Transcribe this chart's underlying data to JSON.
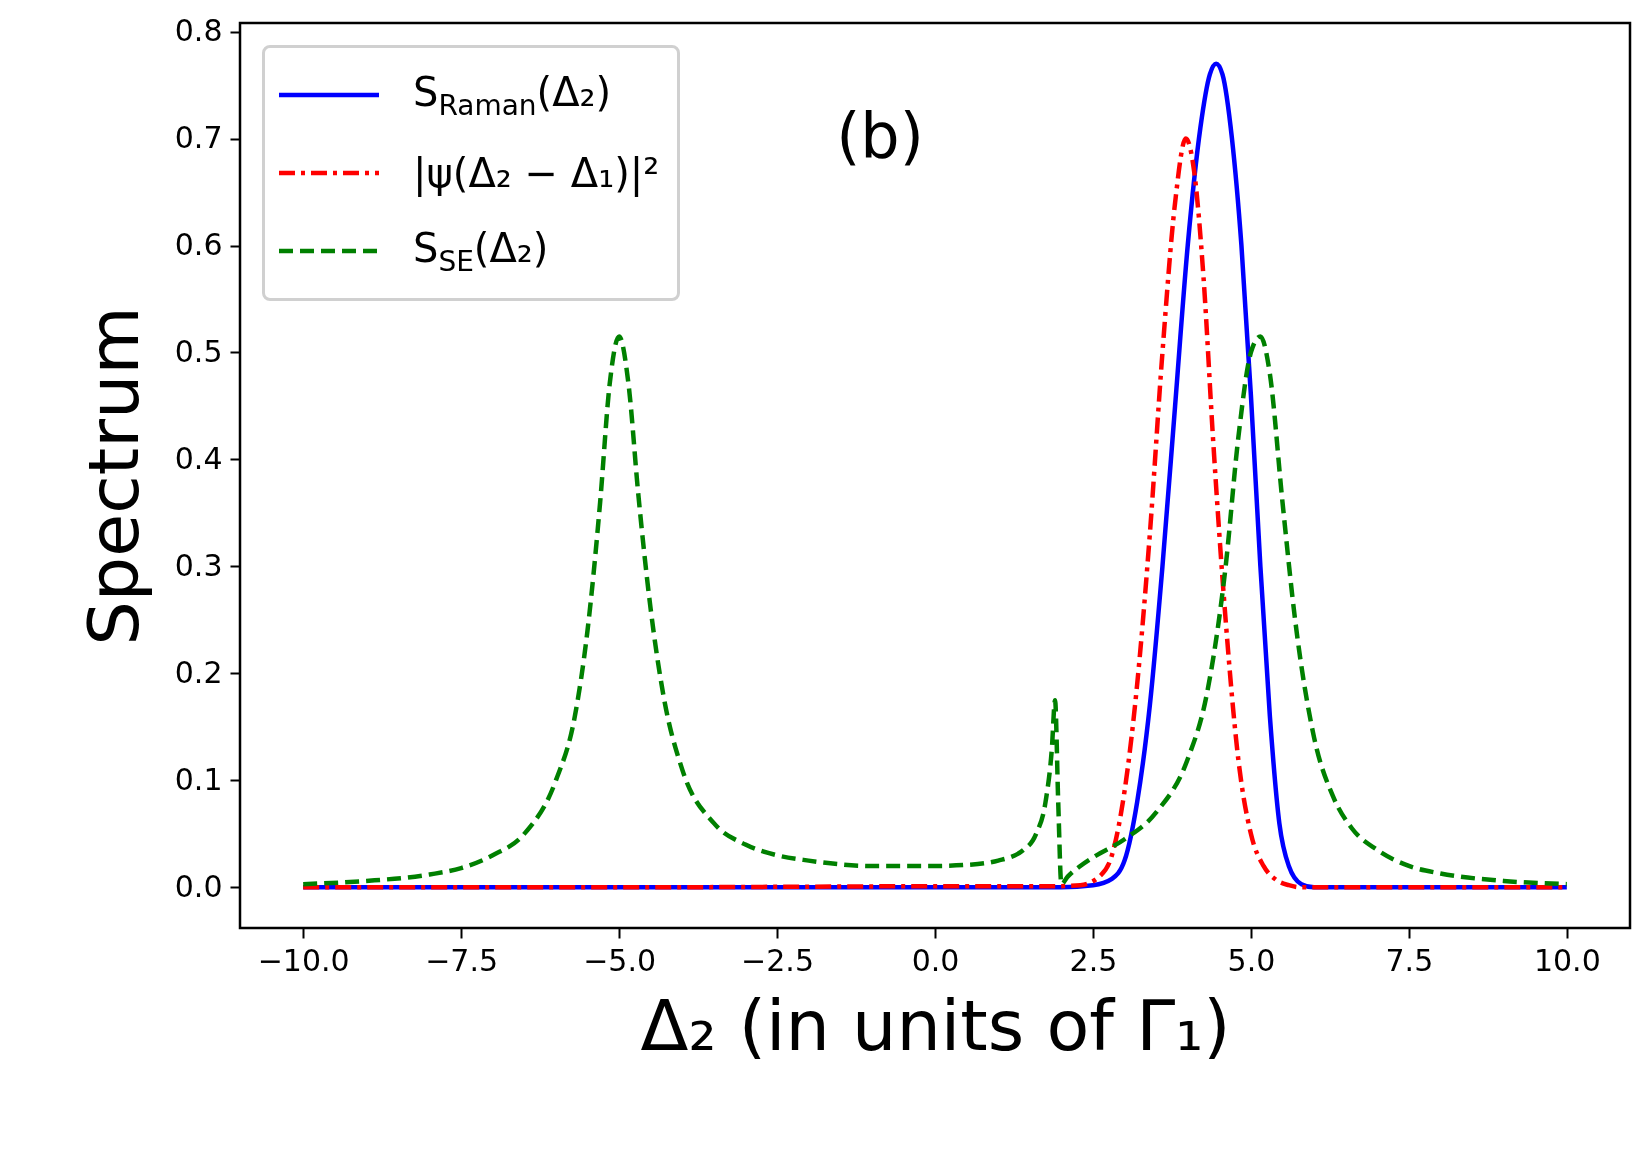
{
  "chart_data": {
    "type": "line",
    "xlabel": "Δ₂ (in units of Γ₁)",
    "ylabel": "Spectrum",
    "annotations": [
      "(b)"
    ],
    "xlim": [
      -11,
      11
    ],
    "ylim": [
      -0.038,
      0.808
    ],
    "xticks": [
      {
        "value": -10,
        "label": "−10.0"
      },
      {
        "value": -7.5,
        "label": "−7.5"
      },
      {
        "value": -5,
        "label": "−5.0"
      },
      {
        "value": -2.5,
        "label": "−2.5"
      },
      {
        "value": 0,
        "label": "0.0"
      },
      2.5,
      {
        "value": 5,
        "label": "5.0"
      },
      7.5,
      {
        "value": 10,
        "label": "10.0"
      }
    ],
    "yticks": [
      {
        "value": 0,
        "label": "0.0"
      },
      0.1,
      0.2,
      0.3,
      0.4,
      0.5,
      0.6,
      0.7,
      0.8
    ],
    "grid": false,
    "legend": "top left",
    "marker": "none",
    "series": [
      {
        "name": "S$_{Raman}$(Δ₂)",
        "color": "#0000ff",
        "line_style": "solid",
        "x": [
          -10,
          -5,
          0,
          2,
          2.5,
          2.8,
          3.0,
          3.2,
          3.4,
          3.6,
          3.8,
          4.0,
          4.2,
          4.35,
          4.45,
          4.55,
          4.7,
          4.85,
          5.0,
          5.15,
          5.3,
          5.45,
          5.6,
          5.8,
          6,
          8,
          10
        ],
        "values": [
          0,
          0,
          0,
          0,
          0.002,
          0.008,
          0.025,
          0.08,
          0.17,
          0.3,
          0.45,
          0.6,
          0.71,
          0.76,
          0.77,
          0.76,
          0.7,
          0.6,
          0.46,
          0.3,
          0.16,
          0.06,
          0.02,
          0.003,
          0,
          0,
          0
        ]
      },
      {
        "name": "|ψ(Δ₂ − Δ₁)|²",
        "color": "#ff0000",
        "line_style": "dashdot",
        "x": [
          -10,
          -5,
          0,
          1.9,
          2.3,
          2.6,
          2.8,
          3.0,
          3.2,
          3.4,
          3.6,
          3.8,
          3.97,
          4.1,
          4.25,
          4.4,
          4.6,
          4.8,
          5.0,
          5.2,
          5.4,
          5.6,
          5.8,
          6,
          8,
          10
        ],
        "values": [
          0,
          0,
          0.001,
          0.001,
          0.002,
          0.01,
          0.03,
          0.09,
          0.19,
          0.33,
          0.5,
          0.64,
          0.7,
          0.67,
          0.57,
          0.42,
          0.25,
          0.12,
          0.05,
          0.02,
          0.007,
          0.002,
          0,
          0,
          0,
          0
        ]
      },
      {
        "name": "S$_{SE}$(Δ₂)",
        "color": "#008000",
        "line_style": "dashed",
        "x": [
          -10,
          -9,
          -8,
          -7.5,
          -7,
          -6.5,
          -6,
          -5.7,
          -5.5,
          -5.3,
          -5.15,
          -5,
          -4.85,
          -4.7,
          -4.5,
          -4.3,
          -4,
          -3.5,
          -3,
          -2.5,
          -2,
          -1,
          0,
          0.5,
          1,
          1.4,
          1.6,
          1.75,
          1.85,
          1.9,
          1.95,
          2.0,
          2.1,
          2.3,
          2.5,
          3,
          3.5,
          4,
          4.3,
          4.6,
          4.8,
          5.0,
          5.15,
          5.3,
          5.5,
          5.7,
          6,
          6.3,
          6.6,
          7,
          7.5,
          8,
          9,
          10
        ],
        "values": [
          0.003,
          0.006,
          0.012,
          0.018,
          0.03,
          0.05,
          0.1,
          0.16,
          0.24,
          0.36,
          0.47,
          0.515,
          0.47,
          0.37,
          0.26,
          0.18,
          0.11,
          0.06,
          0.04,
          0.03,
          0.025,
          0.02,
          0.02,
          0.021,
          0.025,
          0.035,
          0.05,
          0.08,
          0.13,
          0.175,
          0.08,
          0.003,
          0.01,
          0.02,
          0.028,
          0.045,
          0.07,
          0.12,
          0.18,
          0.3,
          0.42,
          0.5,
          0.515,
          0.48,
          0.36,
          0.25,
          0.14,
          0.085,
          0.055,
          0.035,
          0.02,
          0.013,
          0.006,
          0.003
        ]
      }
    ]
  }
}
